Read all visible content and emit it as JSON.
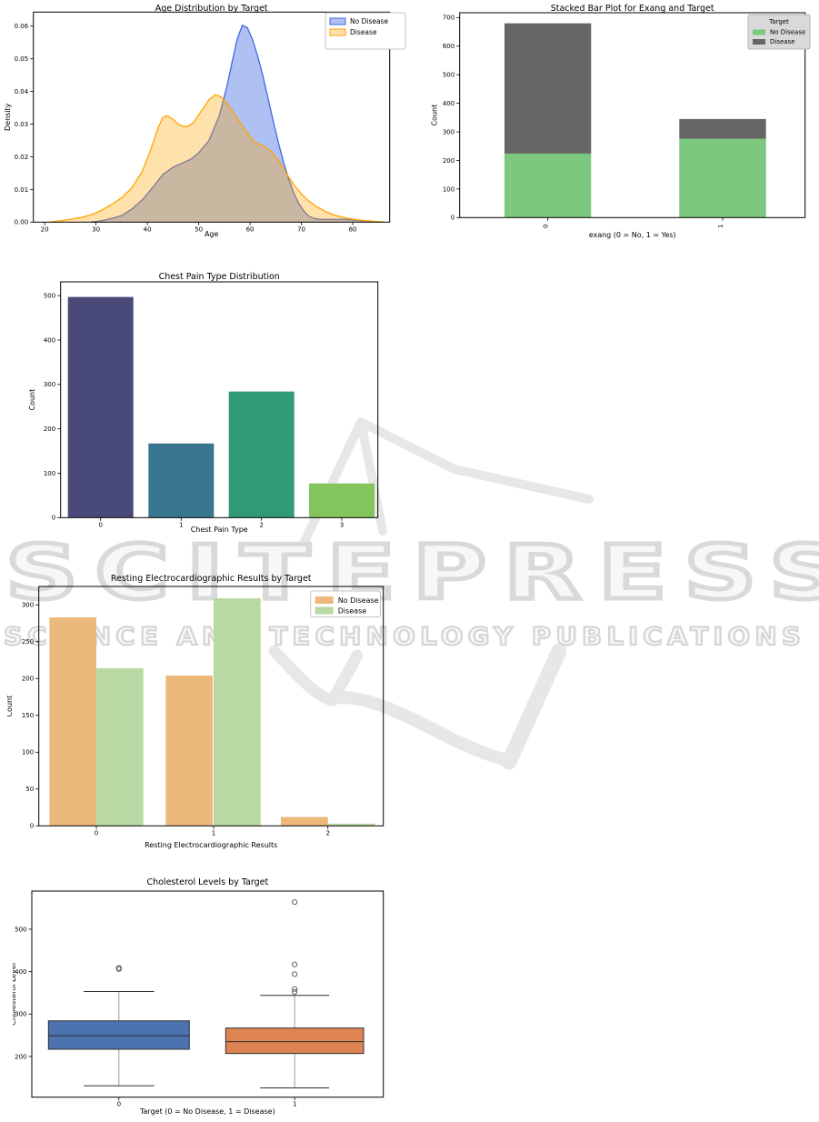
{
  "watermark": {
    "brand": "SCITEPRESS",
    "subtitle": "SCIENCE AND TECHNOLOGY PUBLICATIONS",
    "outline_color": "#d9d9d9"
  },
  "chart_data": [
    {
      "id": "age-kde",
      "type": "area",
      "title": "Age Distribution by Target",
      "xlabel": "Age",
      "ylabel": "Density",
      "xlim": [
        17.8,
        87.2
      ],
      "ylim": [
        0,
        0.0643
      ],
      "xticks": [
        20,
        30,
        40,
        50,
        60,
        70,
        80
      ],
      "yticks": [
        {
          "v": 0,
          "label": "0.00"
        },
        {
          "v": 0.01,
          "label": "0.01"
        },
        {
          "v": 0.02,
          "label": "0.02"
        },
        {
          "v": 0.03,
          "label": "0.03"
        },
        {
          "v": 0.04,
          "label": "0.04"
        },
        {
          "v": 0.05,
          "label": "0.05"
        },
        {
          "v": 0.06,
          "label": "0.06"
        }
      ],
      "grid": false,
      "legend_position": "top-right",
      "series": [
        {
          "name": "No Disease",
          "line_color": "#4169e1",
          "fill_color": "rgba(65,105,225,0.42)",
          "points": [
            [
              29,
              0
            ],
            [
              31,
              0.0004
            ],
            [
              33,
              0.0011
            ],
            [
              35,
              0.002
            ],
            [
              37,
              0.004
            ],
            [
              39,
              0.0068
            ],
            [
              41,
              0.0105
            ],
            [
              43,
              0.0145
            ],
            [
              45,
              0.0168
            ],
            [
              47,
              0.0182
            ],
            [
              48.5,
              0.0193
            ],
            [
              50,
              0.0212
            ],
            [
              52,
              0.025
            ],
            [
              54,
              0.0325
            ],
            [
              55.5,
              0.0415
            ],
            [
              56.5,
              0.049
            ],
            [
              57.5,
              0.056
            ],
            [
              58.5,
              0.0603
            ],
            [
              59.5,
              0.0595
            ],
            [
              60.5,
              0.0558
            ],
            [
              61.5,
              0.0508
            ],
            [
              62.5,
              0.0448
            ],
            [
              63.5,
              0.038
            ],
            [
              64.5,
              0.031
            ],
            [
              65.5,
              0.0245
            ],
            [
              66.5,
              0.0185
            ],
            [
              67.5,
              0.0133
            ],
            [
              68.5,
              0.009
            ],
            [
              69.5,
              0.0057
            ],
            [
              70.5,
              0.0033
            ],
            [
              71.5,
              0.0018
            ],
            [
              72.5,
              0.0011
            ],
            [
              74,
              0.0008
            ],
            [
              76,
              0.0008
            ],
            [
              78,
              0.0009
            ],
            [
              80,
              0.0007
            ],
            [
              82,
              0.0004
            ],
            [
              84,
              0.0002
            ],
            [
              86,
              0
            ]
          ]
        },
        {
          "name": "Disease",
          "line_color": "#ffa500",
          "fill_color": "rgba(255,165,0,0.33)",
          "points": [
            [
              21,
              0
            ],
            [
              24,
              0.0006
            ],
            [
              27,
              0.0014
            ],
            [
              29,
              0.0022
            ],
            [
              31,
              0.0036
            ],
            [
              33,
              0.0054
            ],
            [
              35,
              0.0075
            ],
            [
              37,
              0.0105
            ],
            [
              39,
              0.0155
            ],
            [
              40.5,
              0.0215
            ],
            [
              42,
              0.0285
            ],
            [
              43,
              0.032
            ],
            [
              43.8,
              0.0326
            ],
            [
              45,
              0.0315
            ],
            [
              46,
              0.03
            ],
            [
              47,
              0.0293
            ],
            [
              48,
              0.0294
            ],
            [
              49,
              0.0305
            ],
            [
              50.5,
              0.034
            ],
            [
              52,
              0.0375
            ],
            [
              53.2,
              0.039
            ],
            [
              54.2,
              0.0385
            ],
            [
              55.5,
              0.0365
            ],
            [
              57,
              0.033
            ],
            [
              58.5,
              0.0295
            ],
            [
              60,
              0.0262
            ],
            [
              61.2,
              0.0242
            ],
            [
              62.2,
              0.0235
            ],
            [
              63.2,
              0.0228
            ],
            [
              64.2,
              0.0215
            ],
            [
              65.2,
              0.0196
            ],
            [
              66.2,
              0.0172
            ],
            [
              67.2,
              0.0146
            ],
            [
              68.5,
              0.0115
            ],
            [
              70,
              0.0086
            ],
            [
              71.5,
              0.0064
            ],
            [
              73,
              0.0047
            ],
            [
              75,
              0.003
            ],
            [
              77,
              0.0019
            ],
            [
              79,
              0.0012
            ],
            [
              81,
              0.0007
            ],
            [
              83,
              0.0004
            ],
            [
              86,
              0
            ]
          ]
        }
      ]
    },
    {
      "id": "exang-stacked",
      "type": "stacked_bar",
      "title": "Stacked Bar Plot for Exang and Target",
      "xlabel": "exang (0 = No, 1 = Yes)",
      "ylabel": "Count",
      "categories": [
        "0",
        "1"
      ],
      "xtick_rotation": 90,
      "ymax": 717,
      "yticks": [
        {
          "v": 0,
          "label": "0"
        },
        {
          "v": 100,
          "label": "100"
        },
        {
          "v": 200,
          "label": "200"
        },
        {
          "v": 300,
          "label": "300"
        },
        {
          "v": 400,
          "label": "400"
        },
        {
          "v": 500,
          "label": "500"
        },
        {
          "v": 600,
          "label": "600"
        },
        {
          "v": 700,
          "label": "700"
        }
      ],
      "legend_title": "Target",
      "series": [
        {
          "name": "No Disease",
          "color": "#7cc87e",
          "values": [
            224,
            276
          ]
        },
        {
          "name": "Disease",
          "color": "#666667",
          "values": [
            456,
            69
          ]
        }
      ]
    },
    {
      "id": "chest-pain-bar",
      "type": "bar",
      "title": "Chest Pain Type Distribution",
      "xlabel": "Chest Pain Type",
      "ylabel": "Count",
      "categories": [
        "0",
        "1",
        "2",
        "3"
      ],
      "values": [
        497,
        167,
        284,
        77
      ],
      "colors": [
        "#4a4a7a",
        "#38758e",
        "#329a78",
        "#83c45c"
      ],
      "ymax": 531,
      "yticks": [
        {
          "v": 0,
          "label": "0"
        },
        {
          "v": 100,
          "label": "100"
        },
        {
          "v": 200,
          "label": "200"
        },
        {
          "v": 300,
          "label": "300"
        },
        {
          "v": 400,
          "label": "400"
        },
        {
          "v": 500,
          "label": "500"
        }
      ]
    },
    {
      "id": "restecg-grouped",
      "type": "grouped_bar",
      "title": "Resting Electrocardiographic Results by Target",
      "xlabel": "Resting Electrocardiographic Results",
      "ylabel": "Count",
      "categories": [
        "0",
        "1",
        "2"
      ],
      "ymax": 325,
      "yticks": [
        {
          "v": 0,
          "label": "0"
        },
        {
          "v": 50,
          "label": "50"
        },
        {
          "v": 100,
          "label": "100"
        },
        {
          "v": 150,
          "label": "150"
        },
        {
          "v": 200,
          "label": "200"
        },
        {
          "v": 250,
          "label": "250"
        },
        {
          "v": 300,
          "label": "300"
        }
      ],
      "series": [
        {
          "name": "No Disease",
          "color": "#edb87c",
          "values": [
            283,
            204,
            12
          ]
        },
        {
          "name": "Disease",
          "color": "#b8d9a2",
          "values": [
            214,
            309,
            3
          ]
        }
      ]
    },
    {
      "id": "cholesterol-box",
      "type": "box",
      "title": "Cholesterol Levels by Target",
      "xlabel": "Target (0 = No Disease, 1 = Disease)",
      "ylabel": "Cholesterol Level",
      "categories": [
        "0",
        "1"
      ],
      "ylim": [
        104,
        590
      ],
      "yticks": [
        {
          "v": 200,
          "label": "200"
        },
        {
          "v": 300,
          "label": "300"
        },
        {
          "v": 400,
          "label": "400"
        },
        {
          "v": 500,
          "label": "500"
        }
      ],
      "boxes": [
        {
          "label": "0",
          "color": "#4c72b0",
          "whisker_low": 131,
          "q1": 217,
          "median": 249,
          "q3": 284,
          "whisker_high": 353,
          "outliers": [
            406,
            409
          ]
        },
        {
          "label": "1",
          "color": "#dd8452",
          "whisker_low": 126,
          "q1": 207,
          "median": 235,
          "q3": 267,
          "whisker_high": 344,
          "outliers": [
            352,
            359,
            394,
            417,
            564
          ]
        }
      ]
    }
  ]
}
